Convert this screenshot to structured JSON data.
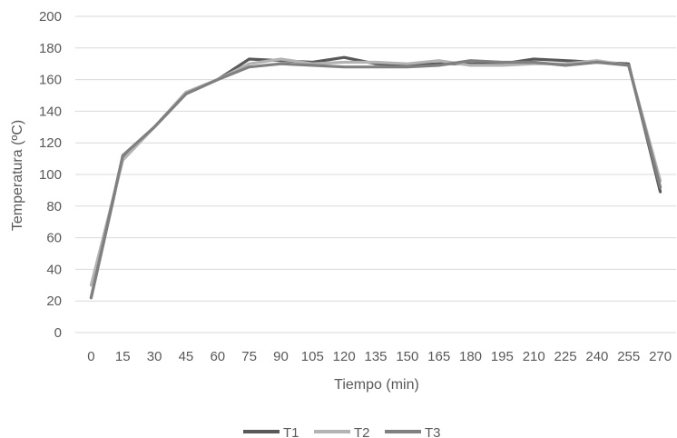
{
  "chart_data": {
    "type": "line",
    "title": "",
    "xlabel": "Tiempo (min)",
    "ylabel": "Temperatura (ºC)",
    "ylim": [
      0,
      200
    ],
    "yticks": [
      0,
      20,
      40,
      60,
      80,
      100,
      120,
      140,
      160,
      180,
      200
    ],
    "grid": "horizontal",
    "legend_position": "bottom",
    "categories": [
      "0",
      "15",
      "30",
      "45",
      "60",
      "75",
      "90",
      "105",
      "120",
      "135",
      "150",
      "165",
      "180",
      "195",
      "210",
      "225",
      "240",
      "255",
      "270"
    ],
    "series": [
      {
        "name": "T1",
        "color": "#595959",
        "values": [
          22,
          111,
          130,
          151,
          160,
          173,
          172,
          171,
          174,
          170,
          169,
          170,
          170,
          170,
          173,
          172,
          171,
          170,
          89
        ]
      },
      {
        "name": "T2",
        "color": "#b3b3b3",
        "values": [
          30,
          109,
          130,
          152,
          160,
          170,
          173,
          170,
          171,
          171,
          170,
          172,
          169,
          169,
          170,
          170,
          172,
          169,
          96
        ]
      },
      {
        "name": "T3",
        "color": "#808080",
        "values": [
          22,
          112,
          130,
          151,
          160,
          168,
          170,
          169,
          168,
          168,
          168,
          169,
          172,
          171,
          171,
          169,
          171,
          169,
          92
        ]
      }
    ]
  }
}
